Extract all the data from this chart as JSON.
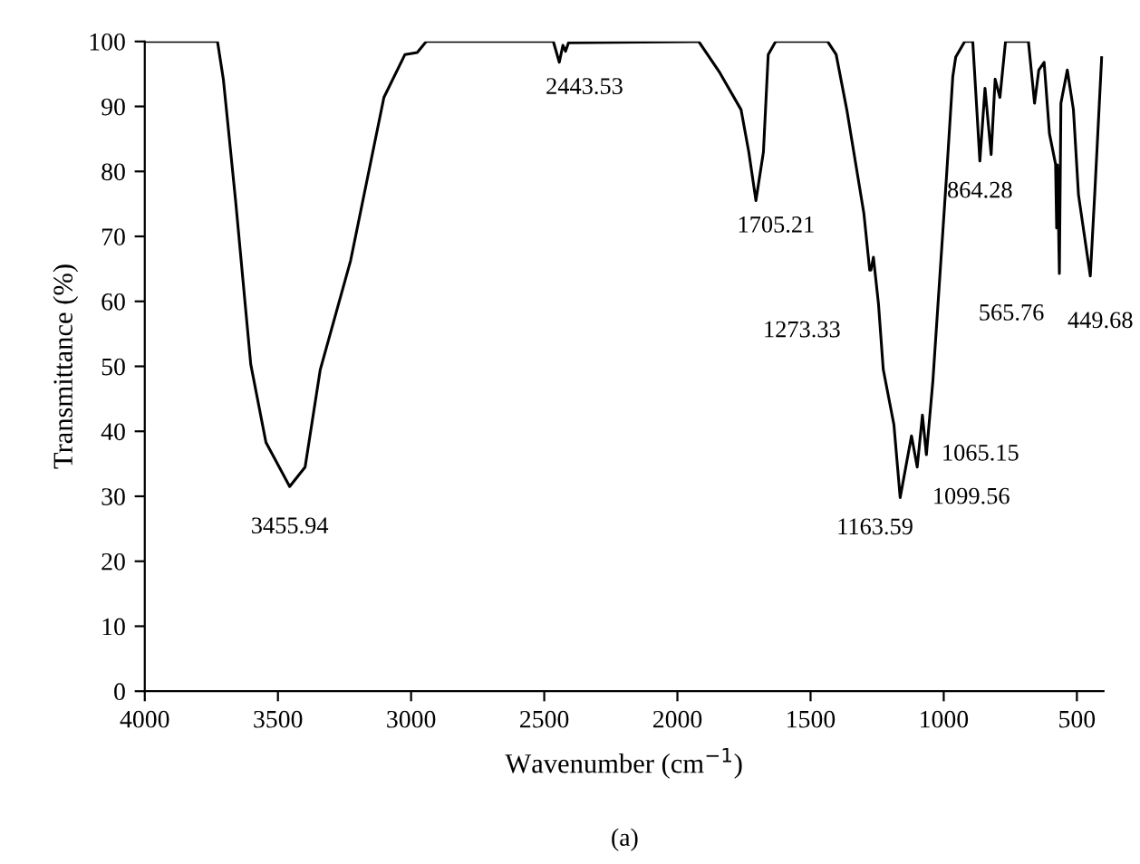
{
  "chart_data": {
    "type": "line",
    "title": "(a)",
    "xlabel": "Wavenumber (cm$^{−1}$)",
    "ylabel": "Transmittance (%)",
    "xlim": [
      4000,
      400
    ],
    "xticks": [
      4000,
      3500,
      3000,
      2500,
      2000,
      1500,
      1000,
      500
    ],
    "ylim": [
      0,
      100
    ],
    "yticks": [
      0,
      10,
      20,
      30,
      40,
      50,
      60,
      70,
      80,
      90,
      100
    ],
    "grid": false,
    "legend": false,
    "marker": "none",
    "line_style": "solid",
    "series": [
      {
        "color": "#000000",
        "x": [
          4000,
          3727,
          3705,
          3659,
          3602,
          3545,
          3455.94,
          3398,
          3341,
          3227,
          3102,
          3023,
          2977,
          2943,
          2466,
          2443.53,
          2430,
          2420,
          2409,
          1920,
          1841,
          1761,
          1732,
          1705.21,
          1677,
          1659,
          1631,
          1436,
          1404,
          1364,
          1300,
          1278,
          1273.33,
          1264,
          1245,
          1227,
          1187,
          1163.59,
          1121,
          1099.56,
          1080,
          1065.15,
          1041,
          989,
          966,
          955,
          921,
          891,
          864.28,
          845,
          822,
          807,
          789,
          768,
          682,
          659,
          643,
          623,
          603,
          580,
          576,
          573,
          565.76,
          560,
          536,
          513,
          494,
          449.68,
          432,
          407
        ],
        "values": [
          100,
          100,
          94.2,
          75.5,
          50.3,
          38.3,
          31.5,
          34.5,
          49.5,
          66.3,
          91.4,
          98,
          98.3,
          100,
          100,
          96.8,
          99.4,
          98.5,
          99.8,
          100,
          95.2,
          89.5,
          83,
          75.5,
          83,
          98,
          100,
          100,
          98,
          89.5,
          73.6,
          64.8,
          64.8,
          66.8,
          59.6,
          49.5,
          41,
          29.8,
          39.3,
          34.5,
          42.5,
          36.4,
          47.6,
          79.6,
          94.6,
          97.6,
          100,
          100,
          81.6,
          92.8,
          82.6,
          94.2,
          91.4,
          100,
          100,
          90.5,
          95.6,
          96.8,
          85.8,
          81.1,
          71.3,
          81,
          64.3,
          90.5,
          95.6,
          89.5,
          76.4,
          63.9,
          77.3,
          97.5
        ]
      }
    ],
    "annotations": [
      {
        "text": "3455.94",
        "x": 3455.94,
        "y": 31.5
      },
      {
        "text": "2443.53",
        "x": 2443.53,
        "y": 96.8
      },
      {
        "text": "1705.21",
        "x": 1705.21,
        "y": 75.5
      },
      {
        "text": "1273.33",
        "x": 1273.33,
        "y": 64.8
      },
      {
        "text": "1163.59",
        "x": 1163.59,
        "y": 29.8
      },
      {
        "text": "1099.56",
        "x": 1099.56,
        "y": 34.5
      },
      {
        "text": "1065.15",
        "x": 1065.15,
        "y": 36.4
      },
      {
        "text": "864.28",
        "x": 864.28,
        "y": 81.6
      },
      {
        "text": "565.76",
        "x": 565.76,
        "y": 64.3
      },
      {
        "text": "449.68",
        "x": 449.68,
        "y": 63.9
      }
    ]
  }
}
